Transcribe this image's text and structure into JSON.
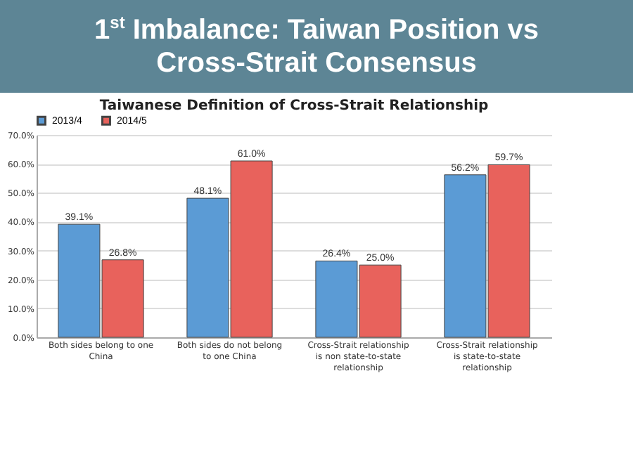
{
  "chart_data": {
    "type": "bar",
    "title": "1$^{st}$ Imbalance: Taiwan Position vs Cross-Strait Consensus",
    "subtitle": "Taiwanese Definition of Cross-Strait Relationship",
    "categories": [
      "Both sides belong to one China",
      "Both sides do not belong to one China",
      "Cross-Strait relationship is non state-to-state relationship",
      "Cross-Strait relationship is state-to-state relationship"
    ],
    "series": [
      {
        "name": "2013/4",
        "color": "#5b9bd5",
        "values": [
          39.1,
          48.1,
          26.4,
          56.2
        ],
        "value_labels": [
          "39.1%",
          "48.1%",
          "26.4%",
          "56.2%"
        ]
      },
      {
        "name": "2014/5",
        "color": "#e8625c",
        "values": [
          26.8,
          61.0,
          25.0,
          59.7
        ],
        "value_labels": [
          "26.8%",
          "61.0%",
          "25.0%",
          "59.7%"
        ]
      }
    ],
    "ylim": [
      0,
      70
    ],
    "yticks": [
      {
        "value": 0,
        "label": "0.0%"
      },
      {
        "value": 10,
        "label": "10.0%"
      },
      {
        "value": 20,
        "label": "20.0%"
      },
      {
        "value": 30,
        "label": "30.0%"
      },
      {
        "value": 40,
        "label": "40.0%"
      },
      {
        "value": 50,
        "label": "50.0%"
      },
      {
        "value": 60,
        "label": "60.0%"
      },
      {
        "value": 70,
        "label": "70.0%"
      }
    ],
    "grid": "y",
    "legend": "top"
  }
}
